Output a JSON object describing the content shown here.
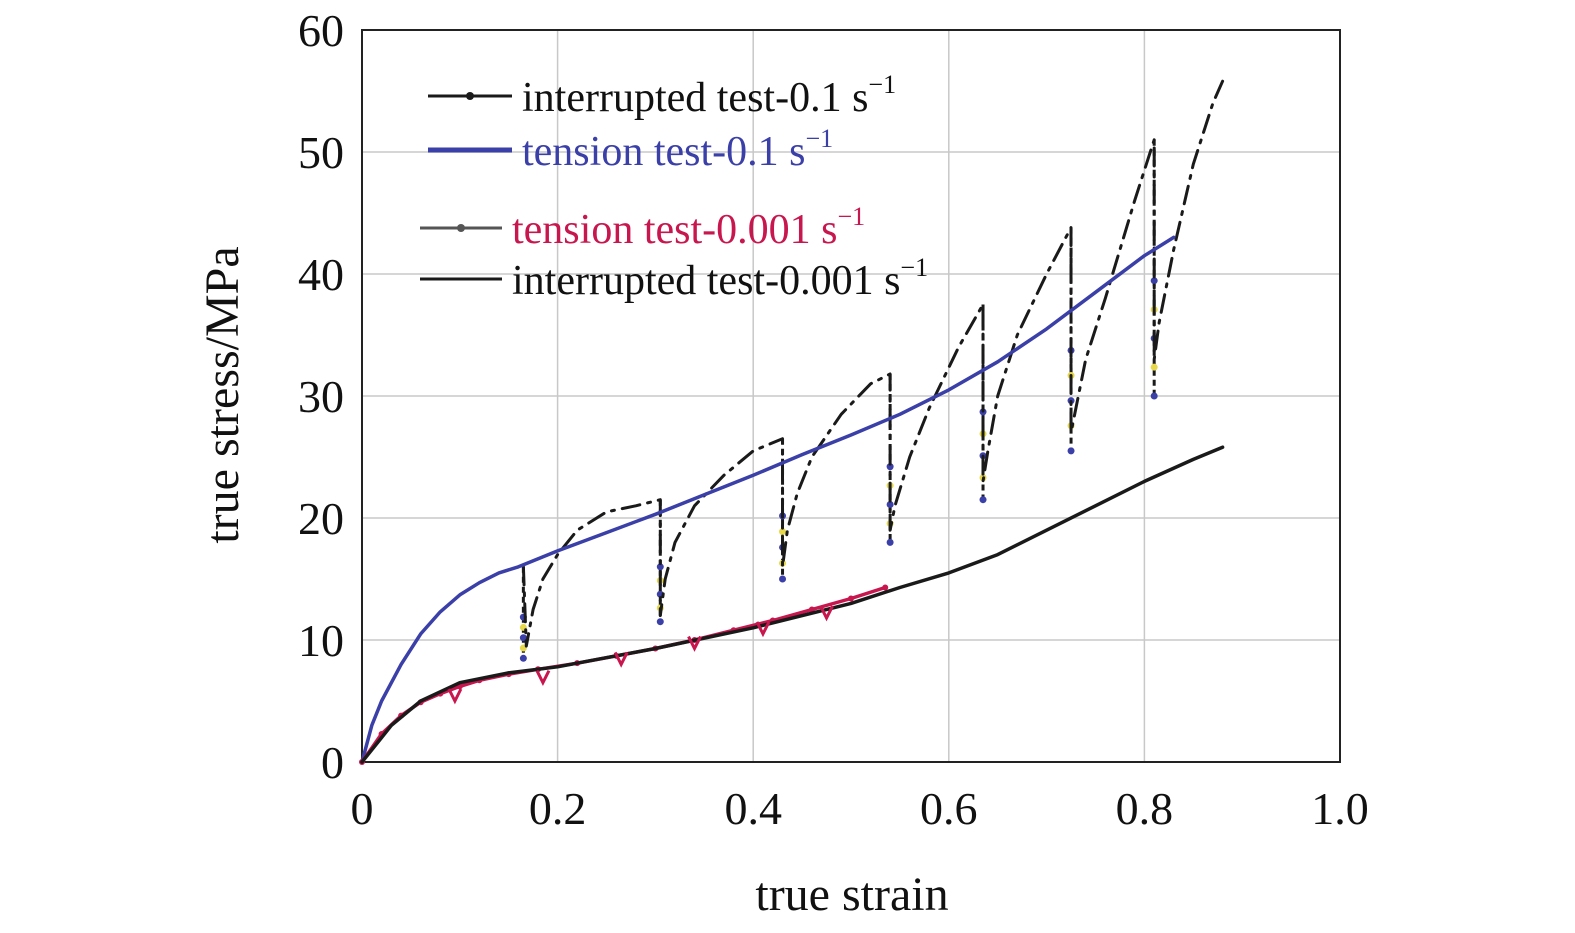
{
  "chart_data": {
    "type": "line",
    "xlabel": "true strain",
    "ylabel": "true stress/MPa",
    "xlim": [
      0,
      1.0
    ],
    "ylim": [
      0,
      60
    ],
    "x_ticks": [
      "0",
      "0.2",
      "0.4",
      "0.6",
      "0.8",
      "1.0"
    ],
    "y_ticks": [
      "0",
      "10",
      "20",
      "30",
      "40",
      "50",
      "60"
    ],
    "grid": true,
    "legend_position": "top-left",
    "series": [
      {
        "name": "interrupted test-0.1 s",
        "legend_unit": "s",
        "legend_sup": "−1",
        "color": "#1a1a1a",
        "style": "dash-dot",
        "x": [
          0.165,
          0.168,
          0.175,
          0.185,
          0.2,
          0.22,
          0.25,
          0.28,
          0.305,
          0.305,
          0.31,
          0.32,
          0.34,
          0.37,
          0.4,
          0.43,
          0.43,
          0.435,
          0.445,
          0.46,
          0.49,
          0.52,
          0.54,
          0.54,
          0.545,
          0.56,
          0.58,
          0.61,
          0.635,
          0.635,
          0.64,
          0.65,
          0.67,
          0.7,
          0.725,
          0.725,
          0.73,
          0.74,
          0.76,
          0.79,
          0.81,
          0.81,
          0.815,
          0.83,
          0.85,
          0.87,
          0.88
        ],
        "y": [
          16.0,
          9.5,
          12.5,
          15.0,
          17.0,
          19.0,
          20.5,
          21.0,
          21.5,
          12.0,
          15.0,
          18.0,
          21.0,
          23.5,
          25.5,
          26.5,
          16.0,
          19.0,
          22.0,
          25.0,
          28.5,
          31.0,
          31.8,
          19.0,
          21.0,
          25.0,
          29.0,
          34.0,
          37.5,
          23.0,
          25.5,
          30.0,
          35.0,
          40.0,
          43.8,
          27.0,
          29.0,
          33.0,
          38.0,
          46.0,
          51.0,
          33.0,
          36.0,
          42.0,
          49.0,
          54.0,
          55.8
        ]
      },
      {
        "name": "tension test-0.1 s",
        "legend_unit": "s",
        "legend_sup": "−1",
        "color": "#3b3fa8",
        "style": "solid",
        "x": [
          0,
          0.01,
          0.02,
          0.04,
          0.06,
          0.08,
          0.1,
          0.12,
          0.14,
          0.16,
          0.2,
          0.25,
          0.3,
          0.35,
          0.4,
          0.45,
          0.5,
          0.55,
          0.6,
          0.65,
          0.7,
          0.75,
          0.8,
          0.83
        ],
        "y": [
          0,
          3.0,
          5.0,
          8.0,
          10.5,
          12.3,
          13.7,
          14.7,
          15.5,
          16.0,
          17.3,
          18.8,
          20.3,
          21.9,
          23.5,
          25.2,
          26.8,
          28.5,
          30.5,
          32.8,
          35.5,
          38.5,
          41.5,
          43.0
        ]
      },
      {
        "name": "tension test-0.001 s",
        "legend_unit": "s",
        "legend_sup": "−1",
        "color": "#c8164f",
        "style": "solid-markers",
        "x": [
          0,
          0.02,
          0.04,
          0.06,
          0.08,
          0.1,
          0.12,
          0.15,
          0.18,
          0.22,
          0.26,
          0.3,
          0.34,
          0.38,
          0.42,
          0.46,
          0.5,
          0.535
        ],
        "y": [
          0,
          2.3,
          3.8,
          4.9,
          5.6,
          6.2,
          6.7,
          7.2,
          7.6,
          8.1,
          8.7,
          9.3,
          10.0,
          10.8,
          11.6,
          12.5,
          13.4,
          14.3
        ]
      },
      {
        "name": "interrupted test-0.001 s",
        "legend_unit": "s",
        "legend_sup": "−1",
        "color": "#1a1a1a",
        "style": "solid",
        "x": [
          0,
          0.03,
          0.06,
          0.1,
          0.15,
          0.2,
          0.3,
          0.4,
          0.5,
          0.55,
          0.6,
          0.65,
          0.7,
          0.75,
          0.8,
          0.85,
          0.88
        ],
        "y": [
          0,
          3.0,
          5.0,
          6.5,
          7.3,
          7.8,
          9.3,
          11.0,
          13.0,
          14.3,
          15.5,
          17.0,
          19.0,
          21.0,
          23.0,
          24.8,
          25.8
        ]
      }
    ],
    "drops": [
      {
        "x": 0.165,
        "from": 16.0,
        "to": 8.5
      },
      {
        "x": 0.305,
        "from": 21.5,
        "to": 11.5
      },
      {
        "x": 0.43,
        "from": 26.5,
        "to": 15.0
      },
      {
        "x": 0.54,
        "from": 31.8,
        "to": 18.0
      },
      {
        "x": 0.635,
        "from": 37.5,
        "to": 21.5
      },
      {
        "x": 0.725,
        "from": 43.8,
        "to": 25.5
      },
      {
        "x": 0.81,
        "from": 51.0,
        "to": 30.0
      }
    ],
    "red_dips": [
      {
        "x": 0.095,
        "y": 5.0
      },
      {
        "x": 0.185,
        "y": 6.5
      },
      {
        "x": 0.265,
        "y": 8.0
      },
      {
        "x": 0.34,
        "y": 9.3
      },
      {
        "x": 0.41,
        "y": 10.5
      },
      {
        "x": 0.475,
        "y": 11.8
      }
    ]
  }
}
